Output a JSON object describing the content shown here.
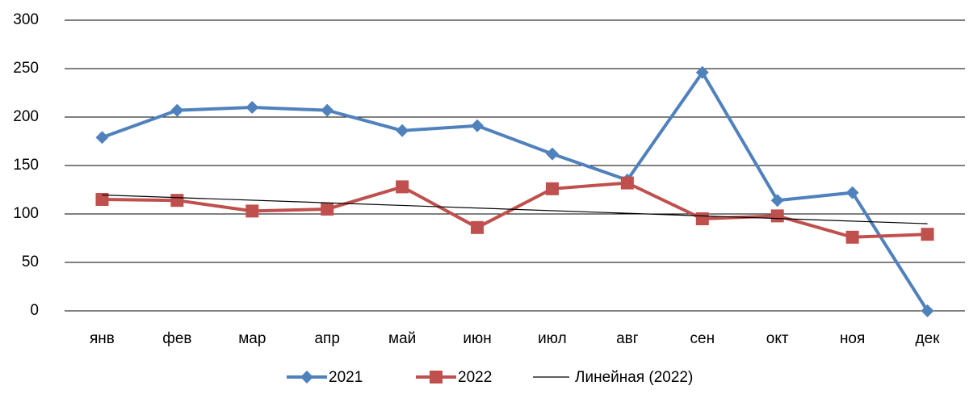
{
  "chart_data": {
    "type": "line",
    "categories": [
      "янв",
      "фев",
      "мар",
      "апр",
      "май",
      "июн",
      "июл",
      "авг",
      "сен",
      "окт",
      "ноя",
      "дек"
    ],
    "series": [
      {
        "name": "2021",
        "color": "#4f81bd",
        "marker": "diamond",
        "values": [
          179,
          207,
          210,
          207,
          186,
          191,
          162,
          135,
          246,
          114,
          122,
          0
        ]
      },
      {
        "name": "2022",
        "color": "#c0504d",
        "marker": "square",
        "values": [
          115,
          114,
          103,
          105,
          128,
          86,
          126,
          132,
          95,
          98,
          76,
          79
        ]
      }
    ],
    "trendline": {
      "name": "Линейная (2022)",
      "series": 1,
      "color": "#000000"
    },
    "ylim": [
      0,
      300
    ],
    "yticks": [
      0,
      50,
      100,
      150,
      200,
      250,
      300
    ],
    "grid": true,
    "legend": "bottom"
  }
}
